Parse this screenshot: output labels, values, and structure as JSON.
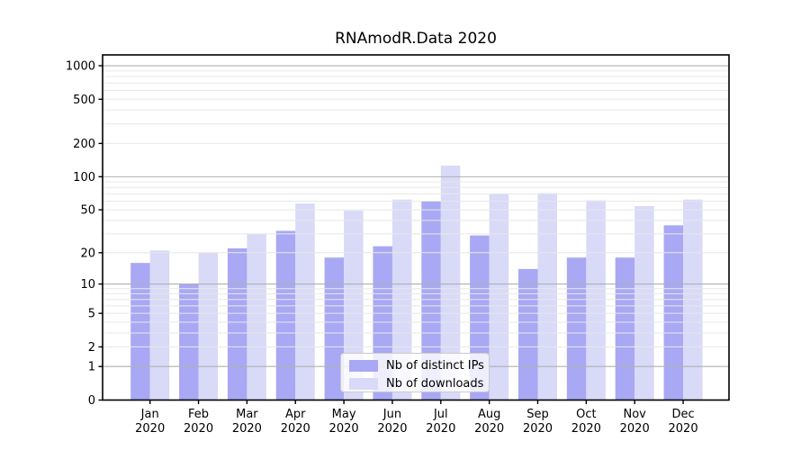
{
  "chart_data": {
    "type": "bar",
    "title": "RNAmodR.Data 2020",
    "categories": [
      "Jan 2020",
      "Feb 2020",
      "Mar 2020",
      "Apr 2020",
      "May 2020",
      "Jun 2020",
      "Jul 2020",
      "Aug 2020",
      "Sep 2020",
      "Oct 2020",
      "Nov 2020",
      "Dec 2020"
    ],
    "series": [
      {
        "name": "Nb of distinct IPs",
        "color": "#a8a8f4",
        "values": [
          16,
          10,
          22,
          32,
          18,
          23,
          60,
          29,
          14,
          18,
          18,
          36
        ]
      },
      {
        "name": "Nb of downloads",
        "color": "#d9d9f8",
        "values": [
          21,
          20,
          30,
          57,
          49,
          62,
          126,
          70,
          71,
          61,
          54,
          62
        ]
      }
    ],
    "yscale": "log1p",
    "yticks": [
      1000,
      500,
      200,
      100,
      50,
      20,
      10,
      5,
      2,
      1,
      0
    ],
    "ylim": [
      0,
      1200
    ],
    "grid": {
      "minor_color": "#e8e8e8",
      "major_color": "#b0b0b0",
      "major_at": [
        1,
        10,
        100,
        1000
      ]
    },
    "legend": {
      "position": "lower-center"
    }
  }
}
